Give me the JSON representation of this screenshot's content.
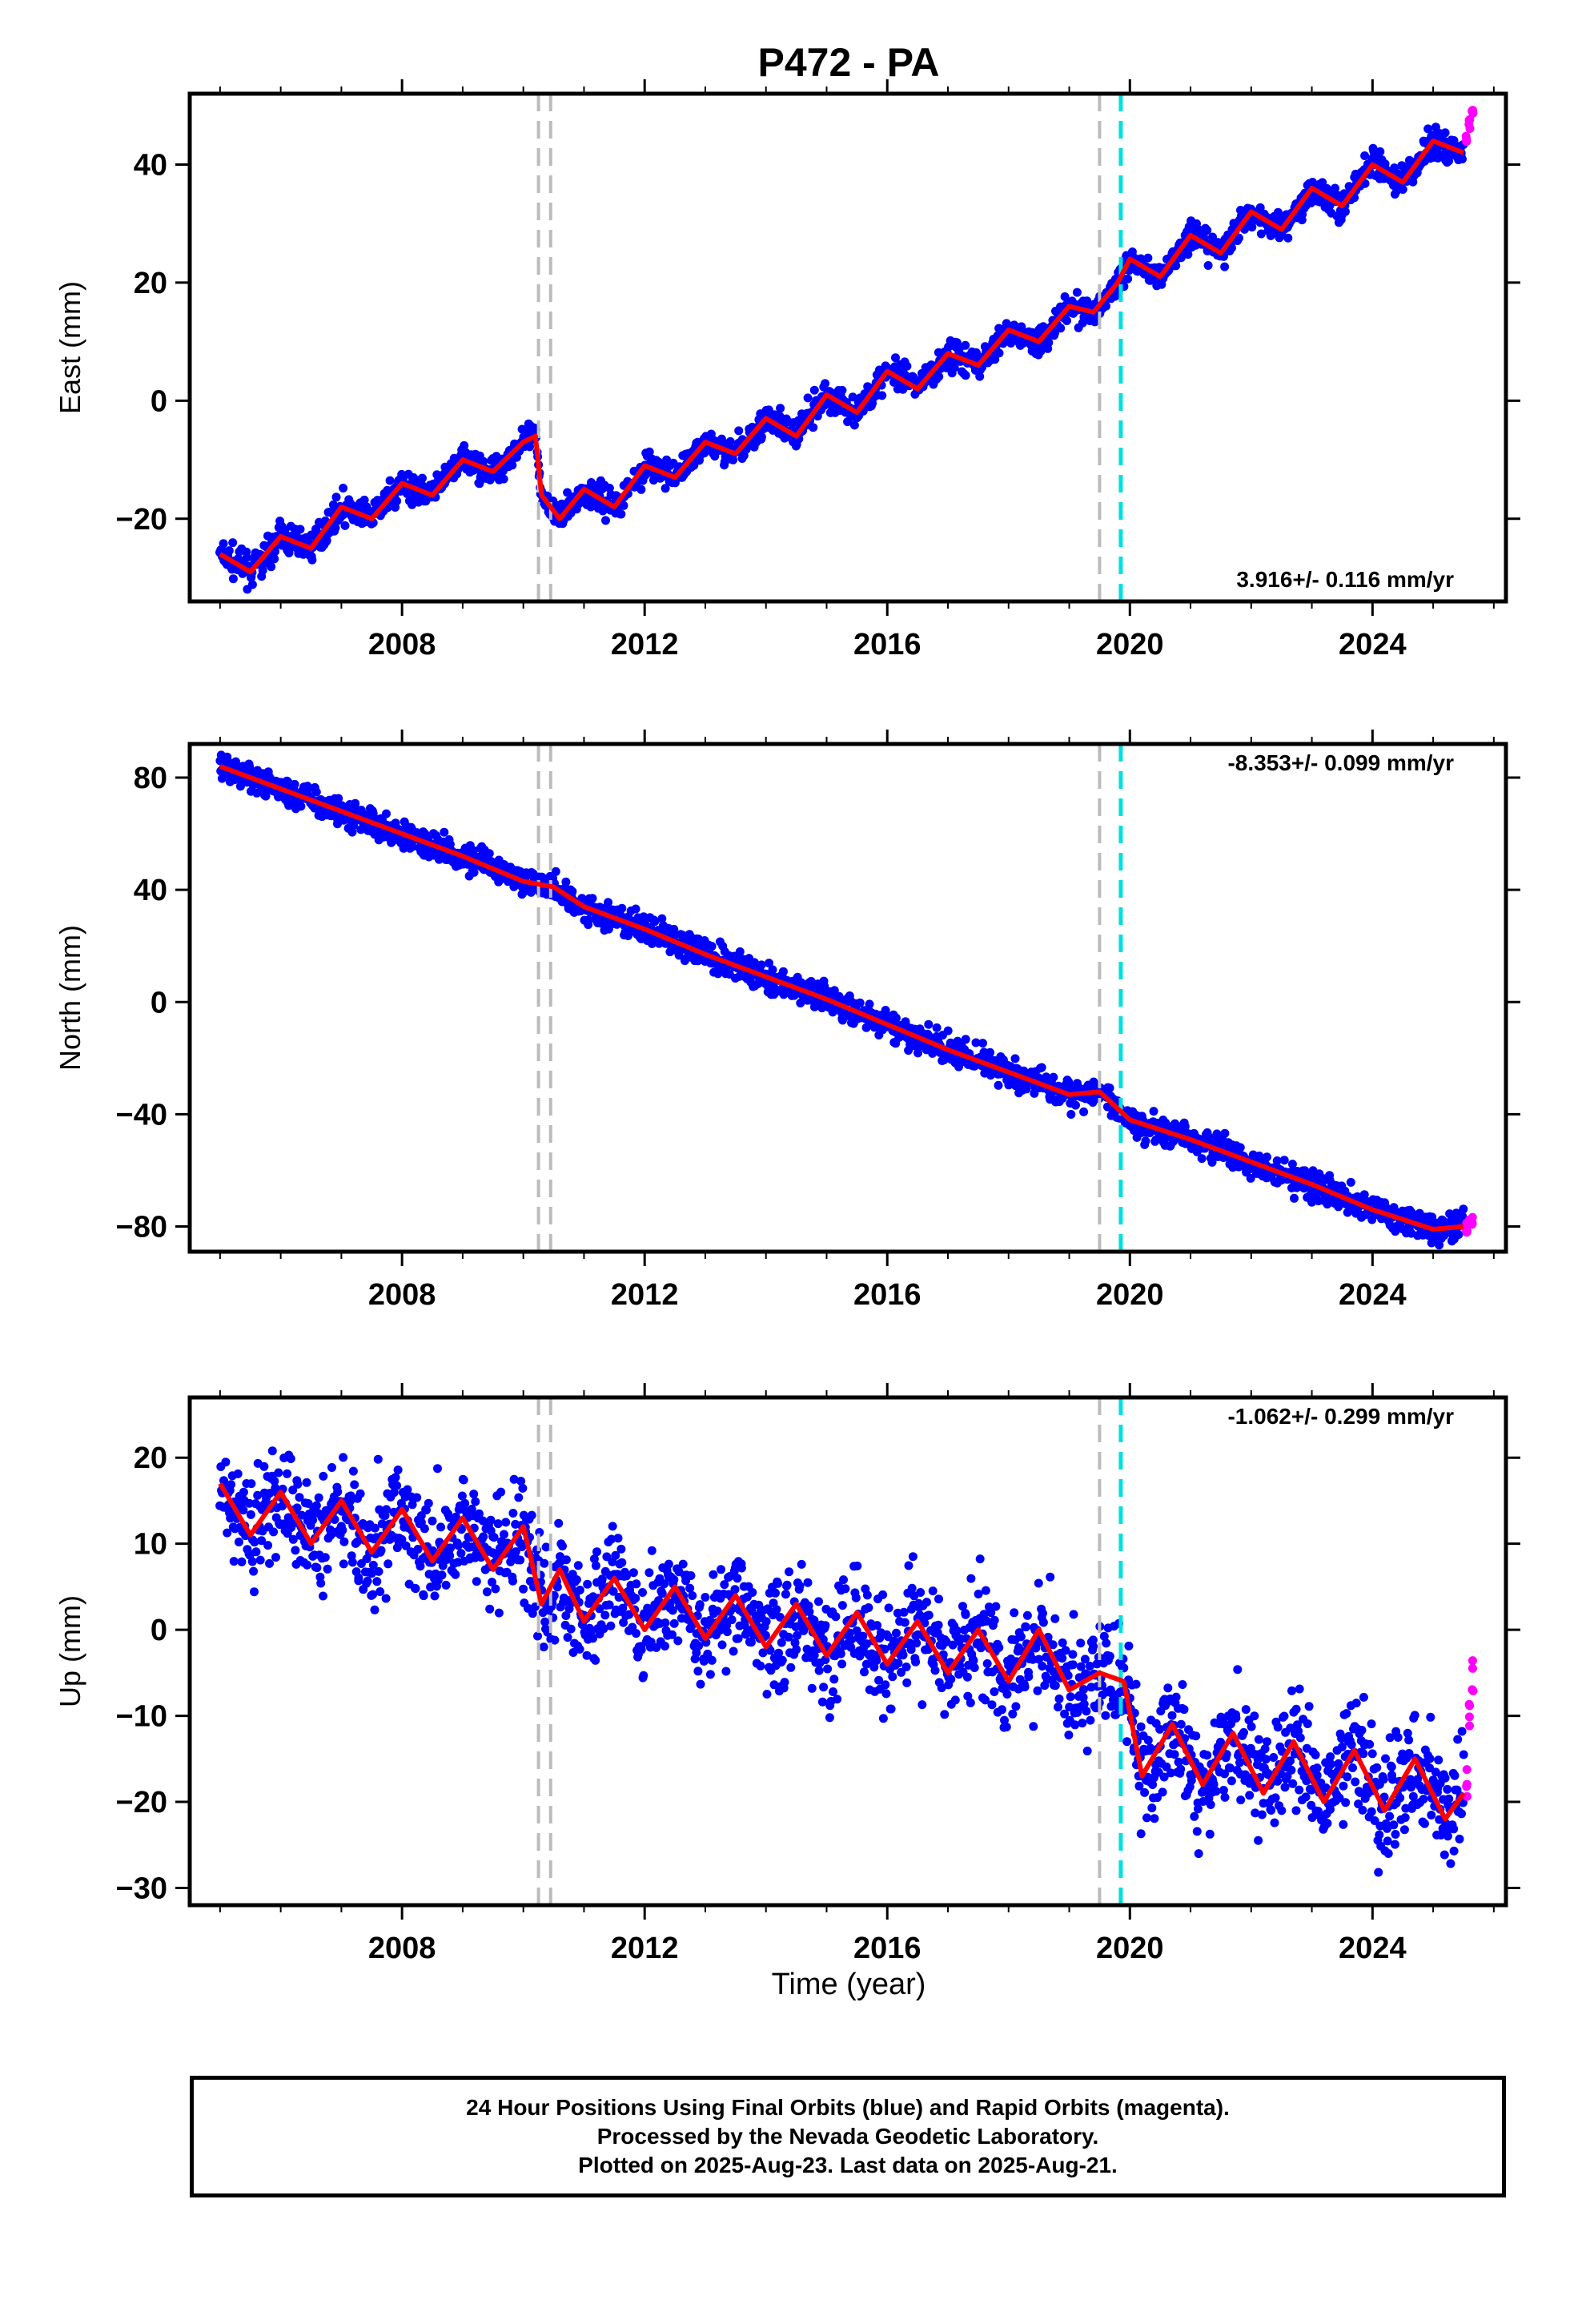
{
  "title": "P472 - PA",
  "xlabel": "Time (year)",
  "x_ticks": [
    "2008",
    "2012",
    "2016",
    "2020",
    "2024"
  ],
  "x_tick_values": [
    2008,
    2012,
    2016,
    2020,
    2024
  ],
  "xlim": [
    2004.5,
    2026.2
  ],
  "events": {
    "gray_dashed": [
      2010.25,
      2010.45,
      2019.5
    ],
    "cyan_dashed": [
      2019.85
    ]
  },
  "colors": {
    "final_orbits": "#0000ff",
    "rapid_orbits": "#ff00ff",
    "model": "#ff0000",
    "equipment_change": "#bbbbbb",
    "earthquake": "#00e0e0"
  },
  "footer": {
    "line1": "24 Hour Positions Using Final Orbits (blue) and Rapid Orbits (magenta).",
    "line2": "Processed by the Nevada Geodetic Laboratory.",
    "line3": "Plotted on 2025-Aug-23. Last data on 2025-Aug-21."
  },
  "chart_data": [
    {
      "type": "scatter",
      "component": "East",
      "ylabel": "East (mm)",
      "ylim": [
        -34,
        52
      ],
      "y_ticks": [
        -20,
        0,
        20,
        40
      ],
      "velocity_label": "3.916+/- 0.116 mm/yr",
      "series": [
        {
          "name": "Final Orbits (blue)",
          "x": [
            2005.0,
            2005.5,
            2006.0,
            2006.5,
            2007.0,
            2007.5,
            2008.0,
            2008.5,
            2009.0,
            2009.5,
            2010.0,
            2010.2,
            2010.3,
            2010.6,
            2011.0,
            2011.5,
            2012.0,
            2012.5,
            2013.0,
            2013.5,
            2014.0,
            2014.5,
            2015.0,
            2015.5,
            2016.0,
            2016.5,
            2017.0,
            2017.5,
            2018.0,
            2018.5,
            2019.0,
            2019.4,
            2019.8,
            2020.0,
            2020.5,
            2021.0,
            2021.5,
            2022.0,
            2022.5,
            2023.0,
            2023.5,
            2024.0,
            2024.5,
            2025.0,
            2025.5
          ],
          "y": [
            -26,
            -29,
            -23,
            -25,
            -18,
            -20,
            -14,
            -16,
            -10,
            -12,
            -7,
            -6,
            -16,
            -20,
            -15,
            -18,
            -11,
            -13,
            -7,
            -9,
            -3,
            -6,
            1,
            -2,
            5,
            2,
            8,
            6,
            12,
            10,
            16,
            15,
            20,
            24,
            21,
            28,
            25,
            32,
            29,
            36,
            33,
            40,
            37,
            44,
            42
          ]
        },
        {
          "name": "Rapid Orbits (magenta)",
          "x": [
            2025.55,
            2025.6,
            2025.65
          ],
          "y": [
            44,
            47,
            49
          ]
        }
      ]
    },
    {
      "type": "scatter",
      "component": "North",
      "ylabel": "North (mm)",
      "ylim": [
        -89,
        92
      ],
      "y_ticks": [
        -80,
        -40,
        0,
        40,
        80
      ],
      "velocity_label": "-8.353+/- 0.099 mm/yr",
      "series": [
        {
          "name": "Final Orbits (blue)",
          "x": [
            2005.0,
            2006.0,
            2007.0,
            2008.0,
            2009.0,
            2010.0,
            2010.5,
            2011.0,
            2012.0,
            2013.0,
            2014.0,
            2015.0,
            2016.0,
            2017.0,
            2018.0,
            2019.0,
            2019.5,
            2020.0,
            2021.0,
            2022.0,
            2023.0,
            2024.0,
            2025.0,
            2025.5
          ],
          "y": [
            84,
            76,
            68,
            60,
            52,
            43,
            41,
            34,
            26,
            17,
            9,
            1,
            -8,
            -17,
            -25,
            -33,
            -32,
            -42,
            -49,
            -57,
            -65,
            -74,
            -81,
            -80
          ]
        },
        {
          "name": "Rapid Orbits (magenta)",
          "x": [
            2025.55,
            2025.6,
            2025.65
          ],
          "y": [
            -81,
            -79,
            -78
          ]
        }
      ]
    },
    {
      "type": "scatter",
      "component": "Up",
      "ylabel": "Up (mm)",
      "ylim": [
        -32,
        27
      ],
      "y_ticks": [
        -30,
        -20,
        -10,
        0,
        10,
        20
      ],
      "velocity_label": "-1.062+/- 0.299 mm/yr",
      "series": [
        {
          "name": "Final Orbits (blue)",
          "x": [
            2005.0,
            2005.5,
            2006.0,
            2006.5,
            2007.0,
            2007.5,
            2008.0,
            2008.5,
            2009.0,
            2009.5,
            2010.0,
            2010.3,
            2010.6,
            2011.0,
            2011.5,
            2012.0,
            2012.5,
            2013.0,
            2013.5,
            2014.0,
            2014.5,
            2015.0,
            2015.5,
            2016.0,
            2016.5,
            2017.0,
            2017.5,
            2018.0,
            2018.5,
            2019.0,
            2019.5,
            2019.9,
            2020.2,
            2020.7,
            2021.2,
            2021.7,
            2022.2,
            2022.7,
            2023.2,
            2023.7,
            2024.2,
            2024.7,
            2025.2,
            2025.5
          ],
          "y": [
            17,
            11,
            16,
            10,
            15,
            9,
            14,
            8,
            13,
            7,
            12,
            3,
            7,
            1,
            6,
            0,
            5,
            -1,
            4,
            -2,
            3,
            -3,
            2,
            -4,
            1,
            -5,
            0,
            -6,
            0,
            -7,
            -5,
            -6,
            -17,
            -11,
            -18,
            -12,
            -19,
            -13,
            -20,
            -14,
            -21,
            -15,
            -22,
            -19
          ]
        },
        {
          "name": "Rapid Orbits (magenta)",
          "x": [
            2025.55,
            2025.6,
            2025.65
          ],
          "y": [
            -17,
            -10,
            -5
          ]
        }
      ]
    }
  ]
}
